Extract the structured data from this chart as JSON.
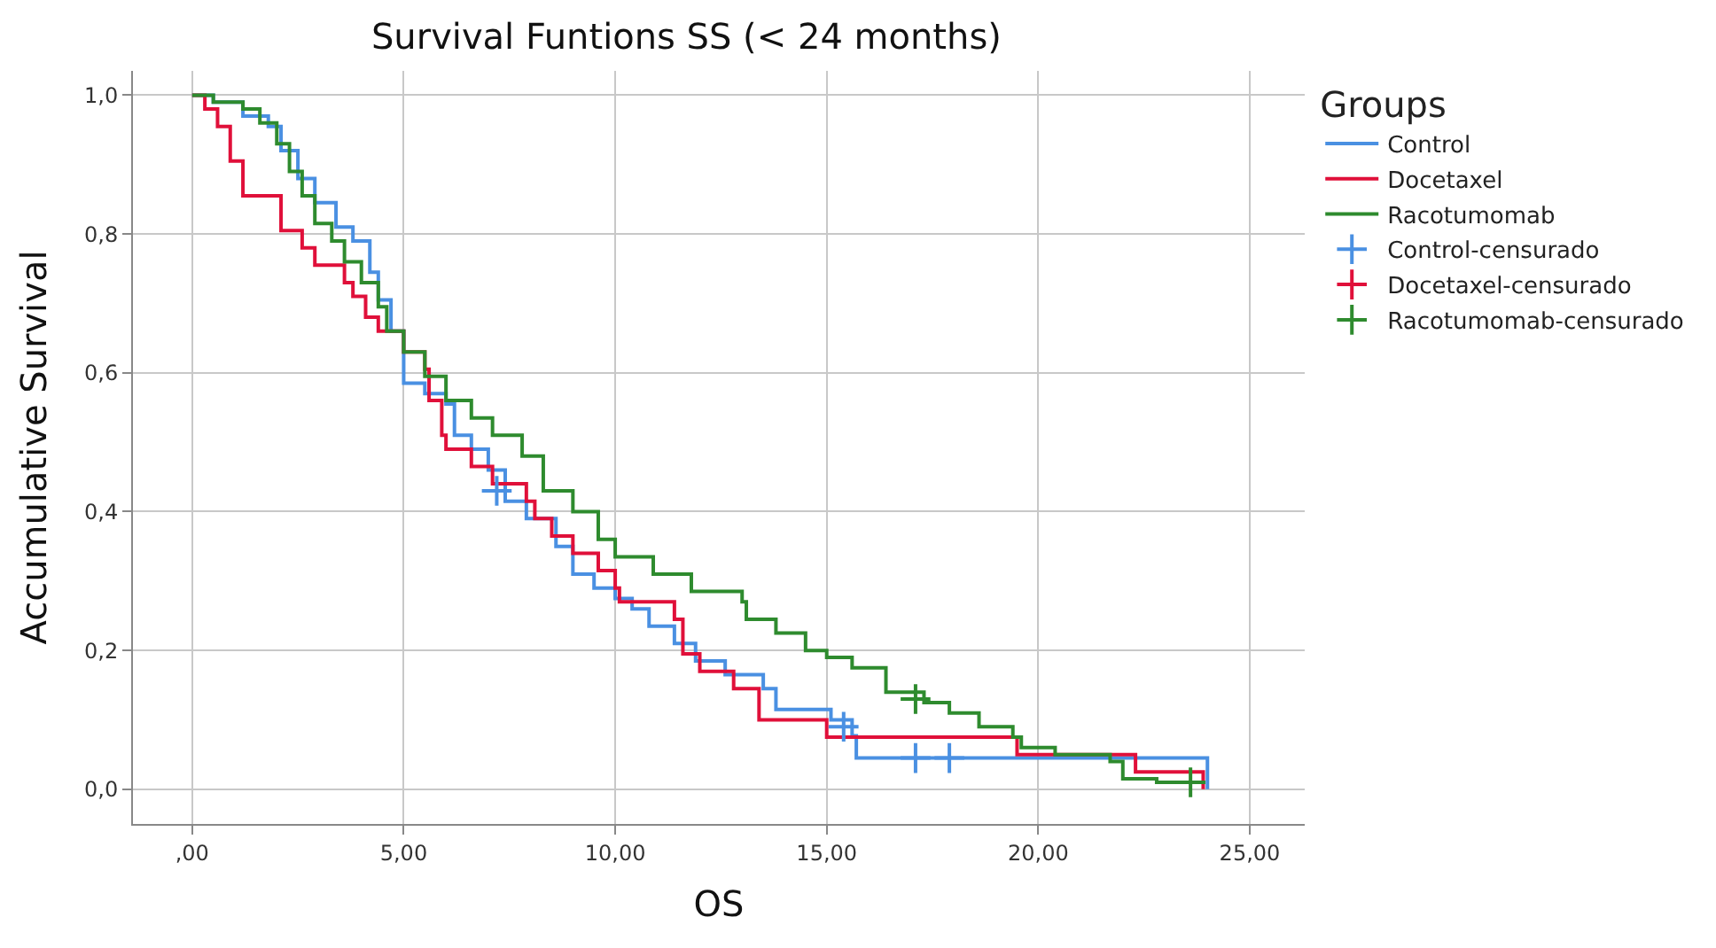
{
  "chart_data": {
    "type": "step",
    "title": "Survival Funtions SS (< 24 months)",
    "xlabel": "OS",
    "ylabel": "Accumulative Survival",
    "legend_title": "Groups",
    "legend": "right",
    "grid": true,
    "line_style": "solid",
    "xlim": [
      -1.4,
      26.3
    ],
    "ylim": [
      -0.05,
      1.035
    ],
    "xticks": [
      {
        "value": 0,
        "label": ",00"
      },
      {
        "value": 5,
        "label": "5,00"
      },
      {
        "value": 10,
        "label": "10,00"
      },
      {
        "value": 15,
        "label": "15,00"
      },
      {
        "value": 20,
        "label": "20,00"
      },
      {
        "value": 25,
        "label": "25,00"
      }
    ],
    "yticks": [
      {
        "value": 0,
        "label": "0,0"
      },
      {
        "value": 0.2,
        "label": "0,2"
      },
      {
        "value": 0.4,
        "label": "0,4"
      },
      {
        "value": 0.6,
        "label": "0,6"
      },
      {
        "value": 0.8,
        "label": "0,8"
      },
      {
        "value": 1,
        "label": "1,0"
      }
    ],
    "series": [
      {
        "name": "Control",
        "color": "#4a90e2",
        "x": [
          0,
          0.5,
          1.2,
          1.8,
          2.1,
          2.5,
          2.9,
          3.4,
          3.8,
          4.2,
          4.4,
          4.7,
          5.0,
          5.5,
          6.0,
          6.2,
          6.6,
          7.0,
          7.4,
          7.9,
          8.6,
          9.0,
          9.5,
          10.0,
          10.4,
          10.8,
          11.4,
          11.9,
          12.6,
          13.5,
          13.8,
          15.1,
          15.6,
          15.7,
          24.0,
          24.0
        ],
        "values": [
          1,
          0.99,
          0.97,
          0.955,
          0.92,
          0.88,
          0.845,
          0.81,
          0.79,
          0.745,
          0.705,
          0.66,
          0.585,
          0.57,
          0.555,
          0.51,
          0.49,
          0.46,
          0.415,
          0.39,
          0.35,
          0.31,
          0.29,
          0.275,
          0.26,
          0.235,
          0.21,
          0.185,
          0.165,
          0.145,
          0.115,
          0.1,
          0.077,
          0.045,
          0.045,
          0
        ]
      },
      {
        "name": "Docetaxel",
        "color": "#e0103a",
        "x": [
          0,
          0.3,
          0.6,
          0.9,
          1.2,
          2.1,
          2.6,
          2.9,
          3.6,
          3.8,
          4.1,
          4.4,
          5.0,
          5.5,
          5.6,
          5.9,
          6.0,
          6.6,
          7.1,
          7.9,
          8.1,
          8.5,
          9.0,
          9.6,
          10.0,
          10.1,
          11.4,
          11.6,
          12.0,
          12.8,
          13.4,
          15.0,
          19.5,
          22.3,
          23.9,
          23.9
        ],
        "values": [
          1,
          0.98,
          0.955,
          0.905,
          0.855,
          0.805,
          0.78,
          0.755,
          0.73,
          0.71,
          0.68,
          0.66,
          0.63,
          0.605,
          0.56,
          0.51,
          0.49,
          0.465,
          0.44,
          0.415,
          0.39,
          0.365,
          0.34,
          0.315,
          0.29,
          0.27,
          0.245,
          0.195,
          0.17,
          0.145,
          0.1,
          0.075,
          0.05,
          0.025,
          0.025,
          0
        ]
      },
      {
        "name": "Racotumomab",
        "color": "#2e8b2e",
        "x": [
          0,
          0.5,
          1.2,
          1.6,
          2.0,
          2.3,
          2.6,
          2.9,
          3.3,
          3.6,
          4.0,
          4.4,
          4.6,
          5.0,
          5.5,
          6.0,
          6.6,
          7.1,
          7.8,
          8.3,
          9.0,
          9.6,
          10.0,
          10.9,
          11.8,
          13.0,
          13.1,
          13.8,
          14.5,
          15.0,
          15.6,
          16.4,
          17.3,
          17.9,
          18.6,
          19.4,
          19.6,
          20.4,
          21.7,
          22.0,
          22.8,
          23.6
        ],
        "values": [
          1,
          0.99,
          0.98,
          0.96,
          0.93,
          0.89,
          0.855,
          0.815,
          0.79,
          0.76,
          0.73,
          0.695,
          0.66,
          0.63,
          0.595,
          0.56,
          0.535,
          0.51,
          0.48,
          0.43,
          0.4,
          0.36,
          0.335,
          0.31,
          0.285,
          0.27,
          0.245,
          0.225,
          0.2,
          0.19,
          0.175,
          0.14,
          0.125,
          0.11,
          0.09,
          0.075,
          0.06,
          0.05,
          0.04,
          0.015,
          0.01,
          0.01
        ]
      },
      {
        "name": "Control-censurado",
        "type": "scatter",
        "marker": "cross",
        "color": "#4a90e2",
        "x": [
          7.2,
          15.4,
          17.1,
          17.9
        ],
        "values": [
          0.43,
          0.09,
          0.045,
          0.045
        ]
      },
      {
        "name": "Docetaxel-censurado",
        "type": "scatter",
        "marker": "cross",
        "color": "#e0103a"
      },
      {
        "name": "Racotumomab-censurado",
        "type": "scatter",
        "marker": "cross",
        "color": "#2e8b2e",
        "x": [
          17.1,
          23.6
        ],
        "values": [
          0.13,
          0.01
        ]
      }
    ]
  }
}
